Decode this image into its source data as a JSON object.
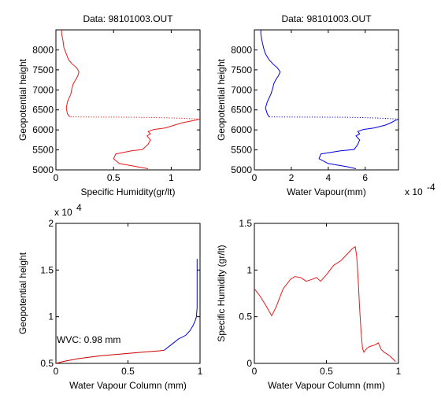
{
  "chart_data": [
    {
      "type": "line",
      "title": "Data: 98101003.OUT",
      "xlabel": "Specific Humidity(gr/lt)",
      "ylabel": "Geopotential height",
      "xlim": [
        0,
        1.25
      ],
      "ylim": [
        5000,
        8500
      ],
      "xticks": [
        0,
        0.5,
        1
      ],
      "xtick_labels": [
        "0",
        "0.5",
        "1"
      ],
      "yticks": [
        5000,
        5500,
        6000,
        6500,
        7000,
        7500,
        8000
      ],
      "ytick_labels": [
        "5000",
        "5500",
        "6000",
        "6500",
        "7000",
        "7500",
        "8000"
      ],
      "color": "#e41a1a",
      "solid": {
        "x": [
          0.8,
          0.7,
          0.55,
          0.5,
          0.52,
          0.66,
          0.75,
          0.8,
          0.82,
          0.79,
          0.82,
          0.8,
          0.85,
          0.95,
          1.03,
          1.1,
          1.19,
          1.25
        ],
        "y": [
          5030,
          5080,
          5160,
          5280,
          5400,
          5480,
          5510,
          5640,
          5750,
          5850,
          5900,
          5960,
          6010,
          6050,
          6120,
          6180,
          6230,
          6270
        ]
      },
      "dotted": {
        "x": [
          1.25,
          1.1,
          0.9,
          0.7,
          0.5,
          0.3,
          0.12
        ],
        "y": [
          6270,
          6290,
          6305,
          6315,
          6320,
          6322,
          6325
        ]
      },
      "upper": {
        "x": [
          0.12,
          0.1,
          0.09,
          0.1,
          0.13,
          0.14,
          0.15,
          0.17,
          0.19,
          0.2,
          0.18,
          0.14,
          0.11,
          0.09,
          0.07,
          0.06,
          0.05,
          0.05
        ],
        "y": [
          6325,
          6400,
          6550,
          6700,
          6900,
          7050,
          7150,
          7250,
          7350,
          7450,
          7550,
          7650,
          7750,
          7900,
          8050,
          8250,
          8400,
          8500
        ]
      }
    },
    {
      "type": "line",
      "title": "Data: 98101003.OUT",
      "xlabel": "Water Vapour(mm)",
      "xlabel_exponent": "x 10",
      "xlabel_exponent_power": "-4",
      "ylabel": "Geopotential height",
      "xlim": [
        0,
        7.8
      ],
      "ylim": [
        5000,
        8500
      ],
      "xticks": [
        0,
        2,
        4,
        6
      ],
      "xtick_labels": [
        "0",
        "2",
        "4",
        "6"
      ],
      "yticks": [
        5000,
        5500,
        6000,
        6500,
        7000,
        7500,
        8000
      ],
      "ytick_labels": [
        "5000",
        "5500",
        "6000",
        "6500",
        "7000",
        "7500",
        "8000"
      ],
      "color": "#0000e0",
      "solid": {
        "x": [
          5.5,
          5.0,
          4.0,
          3.5,
          3.6,
          4.7,
          5.4,
          5.6,
          5.7,
          5.5,
          5.7,
          5.6,
          5.9,
          6.5,
          7.1,
          7.4,
          7.6,
          7.8
        ],
        "y": [
          5030,
          5080,
          5160,
          5280,
          5400,
          5480,
          5510,
          5640,
          5750,
          5850,
          5900,
          5960,
          6010,
          6050,
          6120,
          6180,
          6230,
          6270
        ]
      },
      "dotted": {
        "x": [
          7.8,
          7.0,
          6.0,
          5.0,
          3.5,
          2.0,
          0.8
        ],
        "y": [
          6270,
          6290,
          6305,
          6315,
          6320,
          6322,
          6325
        ]
      },
      "upper": {
        "x": [
          0.8,
          0.7,
          0.6,
          0.7,
          0.9,
          1.0,
          1.05,
          1.15,
          1.3,
          1.4,
          1.25,
          1.0,
          0.8,
          0.6,
          0.5,
          0.4,
          0.35,
          0.35
        ],
        "y": [
          6325,
          6400,
          6550,
          6700,
          6900,
          7050,
          7150,
          7250,
          7350,
          7450,
          7550,
          7650,
          7750,
          7900,
          8050,
          8250,
          8400,
          8500
        ]
      }
    },
    {
      "type": "line",
      "title": "",
      "xlabel": "Water Vapour Column (mm)",
      "ylabel": "Geopotential height",
      "ylabel_exponent": "x 10",
      "ylabel_exponent_power": "4",
      "xlim": [
        0,
        1
      ],
      "ylim": [
        0.5,
        2
      ],
      "xticks": [
        0,
        0.5,
        1
      ],
      "xtick_labels": [
        "0",
        "0.5",
        "1"
      ],
      "yticks": [
        0.5,
        1,
        1.5,
        2
      ],
      "ytick_labels": [
        "0.5",
        "1",
        "1.5",
        "2"
      ],
      "annotation": "WVC: 0.98 mm",
      "annotation_color": "#cc0000",
      "red_segment": {
        "x": [
          0.0,
          0.05,
          0.15,
          0.3,
          0.45,
          0.6,
          0.72,
          0.75
        ],
        "y": [
          0.5,
          0.52,
          0.55,
          0.58,
          0.6,
          0.62,
          0.635,
          0.64
        ]
      },
      "blue_segment": {
        "x": [
          0.75,
          0.8,
          0.85,
          0.9,
          0.93,
          0.95,
          0.965,
          0.975,
          0.98,
          0.98
        ],
        "y": [
          0.64,
          0.7,
          0.76,
          0.8,
          0.85,
          0.9,
          0.95,
          1.0,
          1.1,
          1.62
        ]
      }
    },
    {
      "type": "line",
      "title": "",
      "xlabel": "Water Vapour Column (mm)",
      "ylabel": "Specific Humidity (gr/lt)",
      "xlim": [
        0,
        1
      ],
      "ylim": [
        0,
        1.5
      ],
      "xticks": [
        0,
        0.5,
        1
      ],
      "xtick_labels": [
        "0",
        "0.5",
        "1"
      ],
      "yticks": [
        0,
        0.5,
        1,
        1.5
      ],
      "ytick_labels": [
        "0",
        "0.5",
        "1",
        "1.5"
      ],
      "color": "#e41a1a",
      "series": {
        "x": [
          0.0,
          0.04,
          0.08,
          0.12,
          0.15,
          0.2,
          0.25,
          0.28,
          0.32,
          0.36,
          0.4,
          0.43,
          0.46,
          0.5,
          0.55,
          0.6,
          0.65,
          0.68,
          0.7,
          0.71,
          0.72,
          0.73,
          0.74,
          0.75,
          0.76,
          0.78,
          0.8,
          0.82,
          0.84,
          0.86,
          0.88,
          0.9,
          0.92,
          0.94,
          0.96,
          0.98
        ],
        "y": [
          0.8,
          0.72,
          0.62,
          0.51,
          0.6,
          0.8,
          0.9,
          0.93,
          0.92,
          0.88,
          0.9,
          0.92,
          0.88,
          0.95,
          1.05,
          1.1,
          1.18,
          1.23,
          1.25,
          1.15,
          0.9,
          0.6,
          0.35,
          0.16,
          0.12,
          0.16,
          0.18,
          0.19,
          0.2,
          0.22,
          0.15,
          0.12,
          0.1,
          0.08,
          0.05,
          0.02
        ]
      }
    }
  ]
}
